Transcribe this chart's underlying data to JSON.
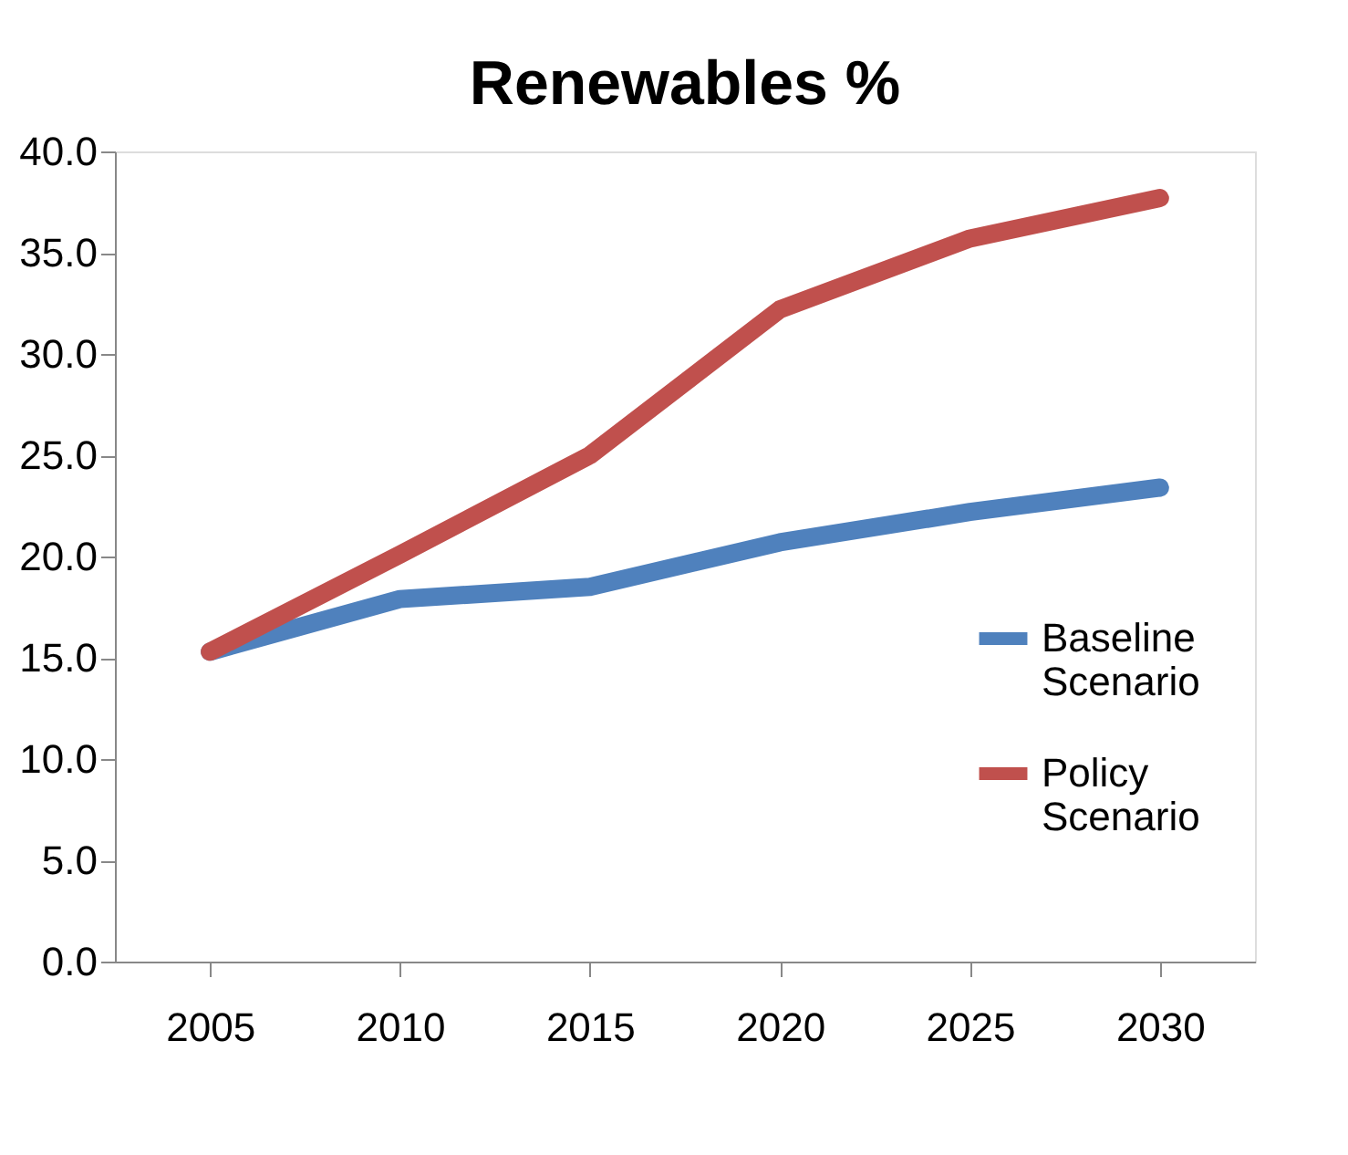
{
  "chart_data": {
    "type": "line",
    "title": "Renewables %",
    "categories": [
      "2005",
      "2010",
      "2015",
      "2020",
      "2025",
      "2030"
    ],
    "series": [
      {
        "name": "Baseline Scenario",
        "color": "#4f81bd",
        "values": [
          15.3,
          17.9,
          18.5,
          20.7,
          22.2,
          23.4
        ]
      },
      {
        "name": "Policy Scenario",
        "color": "#c0504d",
        "values": [
          15.3,
          20.1,
          25.0,
          32.2,
          35.7,
          37.7
        ]
      }
    ],
    "ylim": [
      0,
      40
    ],
    "yticks": [
      {
        "value": 0,
        "label": "0.0"
      },
      {
        "value": 5,
        "label": "5.0"
      },
      {
        "value": 10,
        "label": "10.0"
      },
      {
        "value": 15,
        "label": "15.0"
      },
      {
        "value": 20,
        "label": "20.0"
      },
      {
        "value": 25,
        "label": "25.0"
      },
      {
        "value": 30,
        "label": "30.0"
      },
      {
        "value": 35,
        "label": "35.0"
      },
      {
        "value": 40,
        "label": "40.0"
      }
    ],
    "grid": false,
    "legend": "right",
    "marker": "none",
    "line_style": "solid"
  }
}
